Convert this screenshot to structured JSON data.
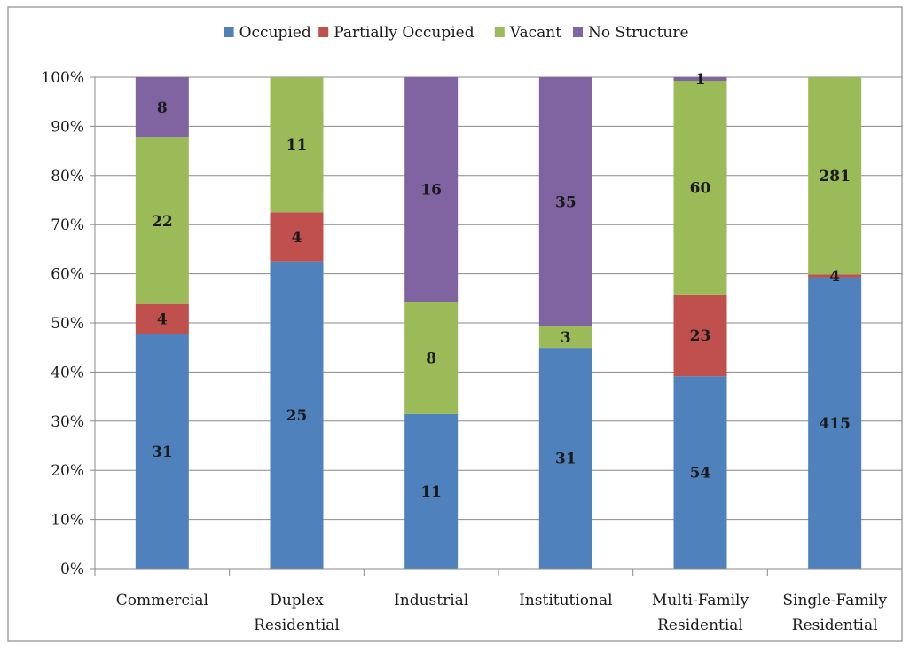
{
  "chart_data": {
    "type": "bar",
    "stacked": "percent",
    "title": "",
    "xlabel": "",
    "ylabel": "",
    "ylim": [
      0,
      100
    ],
    "yticks": [
      "0%",
      "10%",
      "20%",
      "30%",
      "40%",
      "50%",
      "60%",
      "70%",
      "80%",
      "90%",
      "100%"
    ],
    "grid": true,
    "legend_position": "top",
    "categories": [
      [
        "Commercial"
      ],
      [
        "Duplex",
        "Residential"
      ],
      [
        "Industrial"
      ],
      [
        "Institutional"
      ],
      [
        "Multi-Family",
        "Residential"
      ],
      [
        "Single-Family",
        "Residential"
      ]
    ],
    "series": [
      {
        "name": "Occupied",
        "color": "#4f81bd",
        "values": [
          31,
          25,
          11,
          31,
          54,
          415
        ]
      },
      {
        "name": "Partially Occupied",
        "color": "#c0504d",
        "values": [
          4,
          4,
          0,
          0,
          23,
          4
        ]
      },
      {
        "name": "Vacant",
        "color": "#9bbb59",
        "values": [
          22,
          11,
          8,
          3,
          60,
          281
        ]
      },
      {
        "name": "No Structure",
        "color": "#8064a2",
        "values": [
          8,
          0,
          16,
          35,
          1,
          0
        ]
      }
    ]
  }
}
